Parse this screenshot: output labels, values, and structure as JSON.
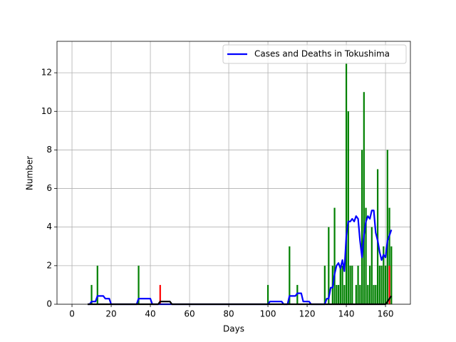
{
  "chart_data": {
    "type": "bar",
    "xlabel": "Days",
    "ylabel": "Number",
    "xlim": [
      -7.65,
      172.7
    ],
    "ylim": [
      0,
      13.63
    ],
    "xticks": [
      0,
      20,
      40,
      60,
      80,
      100,
      120,
      140,
      160
    ],
    "yticks": [
      0,
      2,
      4,
      6,
      8,
      10,
      12
    ],
    "grid": true,
    "legend": "upper right",
    "series": [
      {
        "type": "bar",
        "color": "#008000",
        "x": [
          10,
          13,
          34,
          100,
          111,
          115,
          129,
          131,
          133,
          134,
          135,
          136,
          137,
          138,
          139,
          140,
          141,
          142,
          143,
          145,
          146,
          147,
          148,
          149,
          150,
          151,
          152,
          153,
          154,
          155,
          156,
          157,
          158,
          159,
          160,
          161,
          162,
          163
        ],
        "values": [
          1,
          2,
          2,
          1,
          3,
          1,
          2,
          4,
          2,
          5,
          1,
          1,
          2,
          2,
          1,
          12.5,
          10,
          2,
          2,
          1,
          2,
          1,
          8,
          11,
          5,
          1,
          2,
          4,
          1,
          1,
          7,
          2,
          2,
          3,
          2,
          8,
          5,
          3
        ]
      },
      {
        "type": "bar",
        "color": "#ff0000",
        "x": [
          45,
          162
        ],
        "values": [
          1,
          2
        ]
      },
      {
        "type": "line",
        "name": "Cases and Deaths in Tokushima",
        "color": "#0000ff",
        "x": [
          8,
          9,
          10,
          12,
          13,
          16,
          17,
          19,
          20,
          33,
          34,
          40,
          41,
          100,
          101,
          107,
          108,
          110,
          111,
          114,
          115,
          117,
          118,
          121,
          122,
          129,
          130,
          131,
          132,
          133,
          134,
          135,
          136,
          137,
          138,
          139,
          140,
          141,
          142,
          143,
          144,
          145,
          146,
          147,
          148,
          149,
          150,
          151,
          152,
          153,
          154,
          155,
          156,
          157,
          158,
          159,
          160,
          161,
          162,
          163
        ],
        "values": [
          0,
          0,
          0.14,
          0.14,
          0.43,
          0.43,
          0.29,
          0.29,
          0,
          0,
          0.29,
          0.29,
          0,
          0,
          0.14,
          0.14,
          0,
          0,
          0.43,
          0.43,
          0.57,
          0.57,
          0.14,
          0.14,
          0,
          0,
          0.29,
          0.29,
          0.86,
          0.86,
          1.57,
          2.0,
          2.14,
          1.86,
          2.29,
          1.71,
          3.57,
          4.29,
          4.29,
          4.43,
          4.29,
          4.57,
          4.43,
          3.29,
          2.43,
          3.57,
          4.29,
          4.57,
          4.43,
          4.86,
          4.86,
          3.71,
          3.29,
          2.71,
          2.29,
          2.57,
          2.43,
          3.29,
          3.57,
          3.86
        ]
      },
      {
        "type": "line",
        "color": "#000000",
        "x": [
          8,
          44,
          45,
          50,
          51,
          160,
          161,
          162,
          163
        ],
        "values": [
          0,
          0,
          0.14,
          0.14,
          0,
          0,
          0.14,
          0.29,
          0.43
        ]
      }
    ]
  }
}
